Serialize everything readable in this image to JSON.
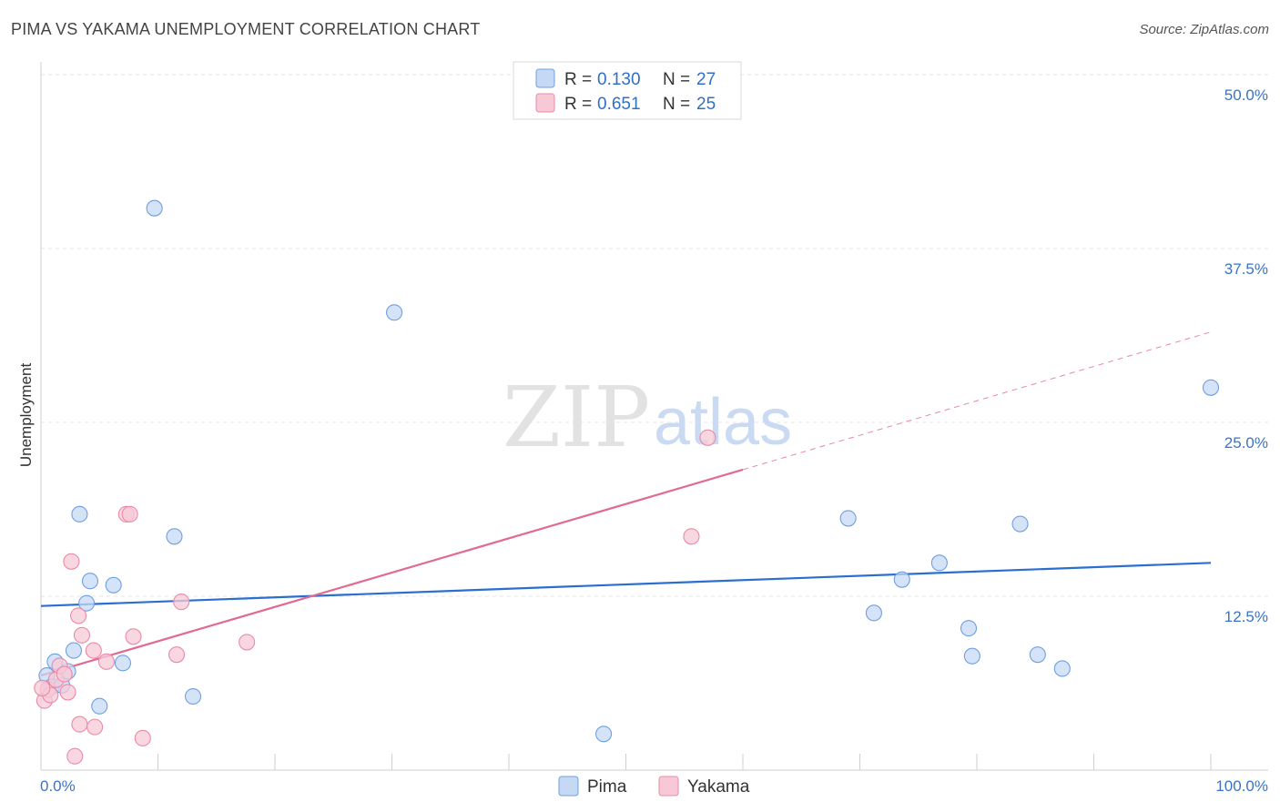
{
  "title": "PIMA VS YAKAMA UNEMPLOYMENT CORRELATION CHART",
  "source": "Source: ZipAtlas.com",
  "watermark": {
    "zip": "ZIP",
    "atlas": "atlas"
  },
  "legend": {
    "rows": [
      {
        "r_label": "R =",
        "r_value": "0.130",
        "n_label": "N =",
        "n_value": "27"
      },
      {
        "r_label": "R =",
        "r_value": "0.651",
        "n_label": "N =",
        "n_value": "25"
      }
    ]
  },
  "chart_data": {
    "type": "scatter",
    "title": "PIMA VS YAKAMA UNEMPLOYMENT CORRELATION CHART",
    "xlabel": "",
    "ylabel": "Unemployment",
    "xlim": [
      0,
      100
    ],
    "ylim": [
      0,
      52
    ],
    "x_tick_labels": [
      "0.0%",
      "100.0%"
    ],
    "y_ticks": [
      12.5,
      25.0,
      37.5,
      50.0
    ],
    "y_tick_labels": [
      "12.5%",
      "25.0%",
      "37.5%",
      "50.0%"
    ],
    "grid": true,
    "legend_position": "top-center",
    "series": [
      {
        "name": "Pima",
        "color": "#6f9fe0",
        "fill": "#c5d9f5",
        "trend_color": "#2a6fcf",
        "trend": {
          "x": [
            0,
            100
          ],
          "y": [
            11.8,
            14.9
          ]
        },
        "points": [
          [
            0.5,
            6.8
          ],
          [
            0.9,
            6.0
          ],
          [
            1.2,
            7.8
          ],
          [
            1.8,
            6.1
          ],
          [
            2.3,
            7.1
          ],
          [
            2.8,
            8.6
          ],
          [
            3.3,
            18.4
          ],
          [
            3.9,
            12.0
          ],
          [
            4.2,
            13.6
          ],
          [
            5.0,
            4.6
          ],
          [
            6.2,
            13.3
          ],
          [
            7.0,
            7.7
          ],
          [
            9.7,
            40.4
          ],
          [
            11.4,
            16.8
          ],
          [
            13.0,
            5.3
          ],
          [
            30.2,
            32.9
          ],
          [
            48.1,
            2.6
          ],
          [
            69.0,
            18.1
          ],
          [
            71.2,
            11.3
          ],
          [
            73.6,
            13.7
          ],
          [
            76.8,
            14.9
          ],
          [
            79.3,
            10.2
          ],
          [
            79.6,
            8.2
          ],
          [
            83.7,
            17.7
          ],
          [
            85.2,
            8.3
          ],
          [
            87.3,
            7.3
          ],
          [
            100.0,
            27.5
          ]
        ]
      },
      {
        "name": "Yakama",
        "color": "#e98aa8",
        "fill": "#f7c9d7",
        "trend_color": "#e06a93",
        "trend": {
          "x": [
            0,
            60
          ],
          "y": [
            6.8,
            21.6
          ]
        },
        "trend_extension": {
          "x": [
            60,
            100
          ],
          "y": [
            21.6,
            31.5
          ]
        },
        "points": [
          [
            0.3,
            5.0
          ],
          [
            0.6,
            5.8
          ],
          [
            0.8,
            5.4
          ],
          [
            1.3,
            6.5
          ],
          [
            1.6,
            7.5
          ],
          [
            2.0,
            6.9
          ],
          [
            2.3,
            5.6
          ],
          [
            2.6,
            15.0
          ],
          [
            2.9,
            1.0
          ],
          [
            3.2,
            11.1
          ],
          [
            3.3,
            3.3
          ],
          [
            3.5,
            9.7
          ],
          [
            4.5,
            8.6
          ],
          [
            4.6,
            3.1
          ],
          [
            5.6,
            7.8
          ],
          [
            7.3,
            18.4
          ],
          [
            7.6,
            18.4
          ],
          [
            7.9,
            9.6
          ],
          [
            8.7,
            2.3
          ],
          [
            11.6,
            8.3
          ],
          [
            12.0,
            12.1
          ],
          [
            17.6,
            9.2
          ],
          [
            55.6,
            16.8
          ],
          [
            57.0,
            23.9
          ],
          [
            0.1,
            5.9
          ]
        ]
      }
    ]
  }
}
